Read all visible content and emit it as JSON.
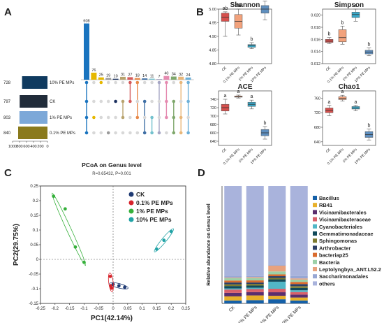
{
  "panel_letters": [
    "A",
    "B",
    "C",
    "D"
  ],
  "colors": {
    "up_total": "#1a74bf",
    "sets": [
      "#0f3a5f",
      "#212c3a",
      "#7ca8d8",
      "#8a7a1c"
    ],
    "upset_bars": [
      "#1a74bf",
      "#e6b800",
      "#e6b800",
      "#9a9a9a",
      "#1a2f5e",
      "#b8a36e",
      "#d45a5a",
      "#e88a4a",
      "#3f6fa5",
      "#74c2ce",
      "#a6a6c4",
      "#e58ab0",
      "#7fa86c",
      "#e8b77a",
      "#6db0d8"
    ],
    "alpha": [
      "#d6504d",
      "#f2a27c",
      "#3aa8c8",
      "#5f8fbf"
    ],
    "pcoa": [
      "#1f3a73",
      "#d7232b",
      "#35b03a",
      "#21a3a6"
    ],
    "bars": [
      "#1560a8",
      "#e8b02a",
      "#5a2e6e",
      "#d9606a",
      "#52b6c6",
      "#114a5a",
      "#7d7a2e",
      "#2d3f66",
      "#d96b2e",
      "#9cd0a8",
      "#e8a27e",
      "#97a7d4"
    ]
  },
  "chart_data": [
    {
      "panel": "A",
      "type": "upset",
      "sets": [
        {
          "name": "10% PE MPs",
          "size": 728
        },
        {
          "name": "CK",
          "size": 797
        },
        {
          "name": "1% PE MPs",
          "size": 803
        },
        {
          "name": "0.1% PE MPs",
          "size": 840
        }
      ],
      "set_size_ticks": [
        "1000",
        "800",
        "600",
        "400",
        "200",
        "0"
      ],
      "intersections": [
        608,
        76,
        25,
        19,
        10,
        31,
        27,
        18,
        14,
        11,
        7,
        40,
        34,
        32,
        24
      ],
      "membership": [
        [
          0,
          1,
          2,
          3
        ],
        [
          2
        ],
        [
          0
        ],
        [
          3
        ],
        [
          1
        ],
        [
          1,
          2
        ],
        [
          0,
          1
        ],
        [
          0,
          2
        ],
        [
          1,
          3
        ],
        [
          2,
          3
        ],
        [
          0,
          3
        ],
        [
          0,
          1,
          2
        ],
        [
          1,
          2,
          3
        ],
        [
          0,
          2,
          3
        ],
        [
          0,
          1,
          3
        ]
      ]
    },
    {
      "panel": "B",
      "type": "box",
      "categories": [
        "CK",
        "0.1% PE MPs",
        "1% PE MPs",
        "10% PE MPs"
      ],
      "subplots": [
        {
          "title": "Shannon",
          "ylim": [
            4.8,
            5.0
          ],
          "ticks": [
            "4.80",
            "4.85",
            "4.90",
            "4.95",
            "5.00"
          ],
          "letters": [
            "ab",
            "ab",
            "b",
            "a"
          ],
          "boxes": [
            [
              4.9,
              4.955,
              4.97,
              4.985,
              4.99
            ],
            [
              4.905,
              4.93,
              4.955,
              4.98,
              5.0
            ],
            [
              4.855,
              4.86,
              4.865,
              4.87,
              4.877
            ],
            [
              4.96,
              4.985,
              5.0,
              5.013,
              5.03
            ]
          ]
        },
        {
          "title": "Simpson",
          "ylim": [
            0.012,
            0.021
          ],
          "ticks": [
            "0.012",
            "0.014",
            "0.016",
            "0.018",
            "0.020"
          ],
          "letters": [
            "b",
            "b",
            "a",
            "b"
          ],
          "boxes": [
            [
              0.0153,
              0.0155,
              0.0157,
              0.016,
              0.0163
            ],
            [
              0.0152,
              0.0156,
              0.0163,
              0.0176,
              0.0182
            ],
            [
              0.019,
              0.0196,
              0.0201,
              0.0205,
              0.021
            ],
            [
              0.0133,
              0.0136,
              0.0139,
              0.0142,
              0.0146
            ]
          ]
        },
        {
          "title": "ACE",
          "ylim": [
            630,
            760
          ],
          "ticks": [
            "640",
            "660",
            "680",
            "700",
            "720",
            "740"
          ],
          "letters": [
            "a",
            "a",
            "a",
            "b"
          ],
          "boxes": [
            [
              705,
              712,
              720,
              728,
              740
            ],
            [
              743,
              745,
              746,
              748,
              750
            ],
            [
              717,
              723,
              728,
              733,
              738
            ],
            [
              645,
              653,
              660,
              668,
              675
            ]
          ]
        },
        {
          "title": "Chao1",
          "ylim": [
            630,
            780
          ],
          "ticks": [
            "640",
            "680",
            "720",
            "760"
          ],
          "letters": [
            "a",
            "a",
            "a",
            "b"
          ],
          "boxes": [
            [
              712,
              720,
              726,
              733,
              740
            ],
            [
              752,
              756,
              760,
              764,
              768
            ],
            [
              725,
              730,
              733,
              737,
              740
            ],
            [
              645,
              652,
              660,
              668,
              675
            ]
          ]
        }
      ]
    },
    {
      "panel": "C",
      "type": "scatter",
      "title": "PCoA on Genus level",
      "subtitle": "R=0.65432, P=0.001",
      "xlabel": "PC1(42.14%)",
      "ylabel": "PC2(29.75%)",
      "xlim": [
        -0.25,
        0.25
      ],
      "ylim": [
        -0.15,
        0.25
      ],
      "xticks": [
        "-0.25",
        "-0.2",
        "-0.15",
        "-0.1",
        "-0.05",
        "0",
        "0.05",
        "0.1",
        "0.15",
        "0.2",
        "0.25"
      ],
      "yticks": [
        "-0.15",
        "-0.1",
        "-0.05",
        "0",
        "0.05",
        "0.1",
        "0.15",
        "0.2",
        "0.25"
      ],
      "legend": [
        "CK",
        "0.1% PE MPs",
        "1% PE MPs",
        "10% PE MPs"
      ],
      "groups": [
        {
          "name": "CK",
          "points": [
            [
              0.0,
              -0.085
            ],
            [
              0.02,
              -0.09
            ],
            [
              0.04,
              -0.095
            ]
          ]
        },
        {
          "name": "0.1% PE MPs",
          "points": [
            [
              -0.01,
              -0.058
            ],
            [
              -0.008,
              -0.09
            ],
            [
              -0.005,
              -0.098
            ]
          ]
        },
        {
          "name": "1% PE MPs",
          "points": [
            [
              -0.205,
              0.215
            ],
            [
              -0.165,
              0.172
            ],
            [
              -0.13,
              0.042
            ],
            [
              -0.1,
              -0.01
            ]
          ]
        },
        {
          "name": "10% PE MPs",
          "points": [
            [
              0.15,
              0.035
            ],
            [
              0.175,
              0.065
            ],
            [
              0.2,
              0.095
            ]
          ]
        }
      ]
    },
    {
      "panel": "D",
      "type": "bar",
      "stacked": true,
      "ylabel": "Relative abundance on Genus level",
      "categories": [
        "CK",
        "0.1% PE MPs",
        "1% PE MPs",
        "10% PE MPs"
      ],
      "series": [
        {
          "name": "Bacillus",
          "values": [
            0.025,
            0.028,
            0.035,
            0.025
          ]
        },
        {
          "name": "RB41",
          "values": [
            0.035,
            0.04,
            0.03,
            0.025
          ]
        },
        {
          "name": "Vicinamibacterales",
          "values": [
            0.03,
            0.028,
            0.03,
            0.025
          ]
        },
        {
          "name": "Vicinamibacteraceae",
          "values": [
            0.028,
            0.026,
            0.03,
            0.022
          ]
        },
        {
          "name": "Cyanobacteriales",
          "values": [
            0.01,
            0.012,
            0.06,
            0.015
          ]
        },
        {
          "name": "Gemmatimonadaceae",
          "values": [
            0.02,
            0.018,
            0.02,
            0.02
          ]
        },
        {
          "name": "Sphingomonas",
          "values": [
            0.015,
            0.014,
            0.012,
            0.015
          ]
        },
        {
          "name": "Arthrobacter",
          "values": [
            0.015,
            0.012,
            0.015,
            0.018
          ]
        },
        {
          "name": "bacteriap25",
          "values": [
            0.017,
            0.018,
            0.015,
            0.018
          ]
        },
        {
          "name": "Bacteria",
          "values": [
            0.02,
            0.02,
            0.025,
            0.02
          ]
        },
        {
          "name": "Leptolyngbya_ANT.L52.2",
          "values": [
            0.005,
            0.008,
            0.05,
            0.01
          ]
        },
        {
          "name": "Saccharimonadales",
          "values": [
            0.012,
            0.01,
            0.01,
            0.02
          ]
        },
        {
          "name": "others",
          "values": [
            0.768,
            0.766,
            0.668,
            0.767
          ]
        }
      ]
    }
  ]
}
